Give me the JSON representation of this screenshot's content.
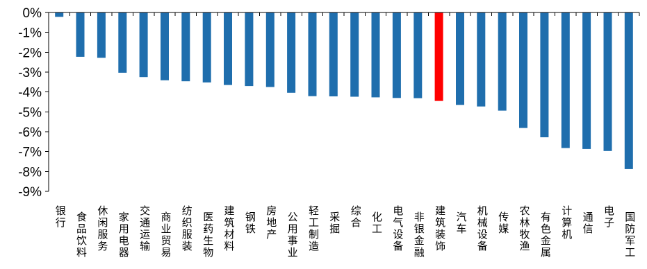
{
  "chart_data": {
    "type": "bar",
    "title": "",
    "xlabel": "",
    "ylabel": "",
    "ylim": [
      -9,
      0
    ],
    "yticks": [
      0,
      -1,
      -2,
      -3,
      -4,
      -5,
      -6,
      -7,
      -8,
      -9
    ],
    "ytick_labels": [
      "0%",
      "-1%",
      "-2%",
      "-3%",
      "-4%",
      "-5%",
      "-6%",
      "-7%",
      "-8%",
      "-9%"
    ],
    "grid": false,
    "legend": "none",
    "colors": {
      "default": "#1f6ead",
      "highlight": "#ff0000"
    },
    "highlight_category": "建筑装饰",
    "categories": [
      "银行",
      "食品饮料",
      "休闲服务",
      "家用电器",
      "交通运输",
      "商业贸易",
      "纺织服装",
      "医药生物",
      "建筑材料",
      "钢铁",
      "房地产",
      "公用事业",
      "轻工制造",
      "采掘",
      "综合",
      "化工",
      "电气设备",
      "非银金融",
      "建筑装饰",
      "汽车",
      "机械设备",
      "传媒",
      "农林牧渔",
      "有色金属",
      "计算机",
      "通信",
      "电子",
      "国防军工"
    ],
    "values": [
      -0.22,
      -2.23,
      -2.28,
      -3.03,
      -3.25,
      -3.41,
      -3.46,
      -3.52,
      -3.65,
      -3.7,
      -3.75,
      -4.04,
      -4.21,
      -4.22,
      -4.24,
      -4.27,
      -4.3,
      -4.31,
      -4.45,
      -4.65,
      -4.73,
      -4.94,
      -5.81,
      -6.28,
      -6.82,
      -6.87,
      -6.97,
      -7.88
    ]
  }
}
